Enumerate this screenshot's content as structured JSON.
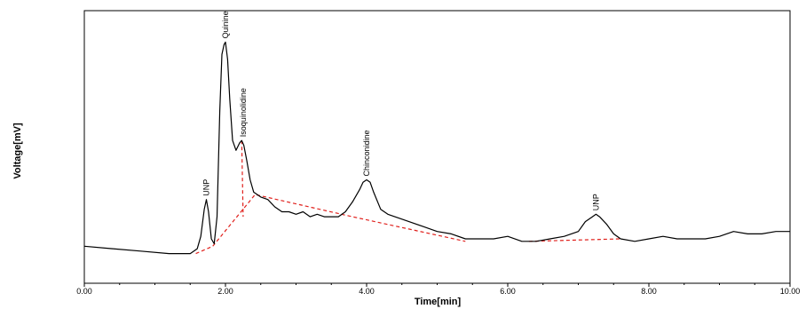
{
  "chart_data": {
    "type": "line",
    "title": "",
    "xlabel": "Time[min]",
    "ylabel": "Voltage[mV]",
    "xlim": [
      0,
      10
    ],
    "ylim": [
      0,
      100
    ],
    "x_tick_labels": [
      "0.00",
      "2.00",
      "4.00",
      "6.00",
      "8.00",
      "10.00"
    ],
    "x_ticks": [
      0,
      2,
      4,
      6,
      8,
      10
    ],
    "y_tick_labels": [],
    "grid": false,
    "legend": "none",
    "line_color": "#000000",
    "baseline_color": "#e0201c",
    "series": [
      {
        "x": [
          0.0,
          0.4,
          0.8,
          1.2,
          1.5,
          1.6,
          1.65,
          1.7,
          1.73,
          1.76,
          1.8,
          1.84,
          1.88,
          1.92,
          1.95,
          1.98,
          2.0,
          2.03,
          2.06,
          2.1,
          2.15,
          2.2,
          2.23,
          2.26,
          2.3,
          2.35,
          2.4,
          2.5,
          2.6,
          2.7,
          2.8,
          2.9,
          3.0,
          3.1,
          3.2,
          3.3,
          3.4,
          3.5,
          3.6,
          3.7,
          3.8,
          3.9,
          3.95,
          4.0,
          4.05,
          4.1,
          4.2,
          4.3,
          4.4,
          4.5,
          4.6,
          4.8,
          5.0,
          5.2,
          5.4,
          5.6,
          5.8,
          6.0,
          6.2,
          6.4,
          6.6,
          6.8,
          7.0,
          7.1,
          7.2,
          7.25,
          7.3,
          7.4,
          7.5,
          7.6,
          7.8,
          8.0,
          8.2,
          8.4,
          8.6,
          8.8,
          9.0,
          9.2,
          9.4,
          9.6,
          9.8,
          10.0
        ],
        "y": [
          10,
          9,
          8,
          7,
          7,
          9,
          14,
          25,
          29,
          24,
          13,
          11,
          22,
          65,
          88,
          92,
          93,
          86,
          70,
          53,
          49,
          52,
          53,
          51,
          45,
          37,
          32,
          30,
          29,
          26,
          24,
          24,
          23,
          24,
          22,
          23,
          22,
          22,
          22,
          24,
          28,
          33,
          36,
          37,
          36,
          32,
          25,
          23,
          22,
          21,
          20,
          18,
          16,
          15,
          13,
          13,
          13,
          14,
          12,
          12,
          13,
          14,
          16,
          20,
          22,
          23,
          22,
          19,
          15,
          13,
          12,
          13,
          14,
          13,
          13,
          13,
          14,
          16,
          15,
          15,
          16,
          16
        ]
      }
    ],
    "baselines": [
      {
        "x": [
          1.58,
          1.82
        ],
        "y": [
          7,
          10
        ]
      },
      {
        "x": [
          1.82,
          2.42,
          3.8,
          5.4
        ],
        "y": [
          10,
          31,
          22,
          12
        ]
      },
      {
        "x": [
          2.23,
          2.25
        ],
        "y": [
          53,
          22
        ]
      },
      {
        "x": [
          6.3,
          7.6
        ],
        "y": [
          12,
          13
        ]
      }
    ],
    "annotations": [
      {
        "text": "UNP",
        "x": 1.73,
        "y": 29
      },
      {
        "text": "Quinine",
        "x": 2.0,
        "y": 93
      },
      {
        "text": "Isoquinolidine",
        "x": 2.25,
        "y": 53
      },
      {
        "text": "Chinconidine",
        "x": 4.0,
        "y": 37
      },
      {
        "text": "UNP",
        "x": 7.25,
        "y": 23
      }
    ]
  }
}
